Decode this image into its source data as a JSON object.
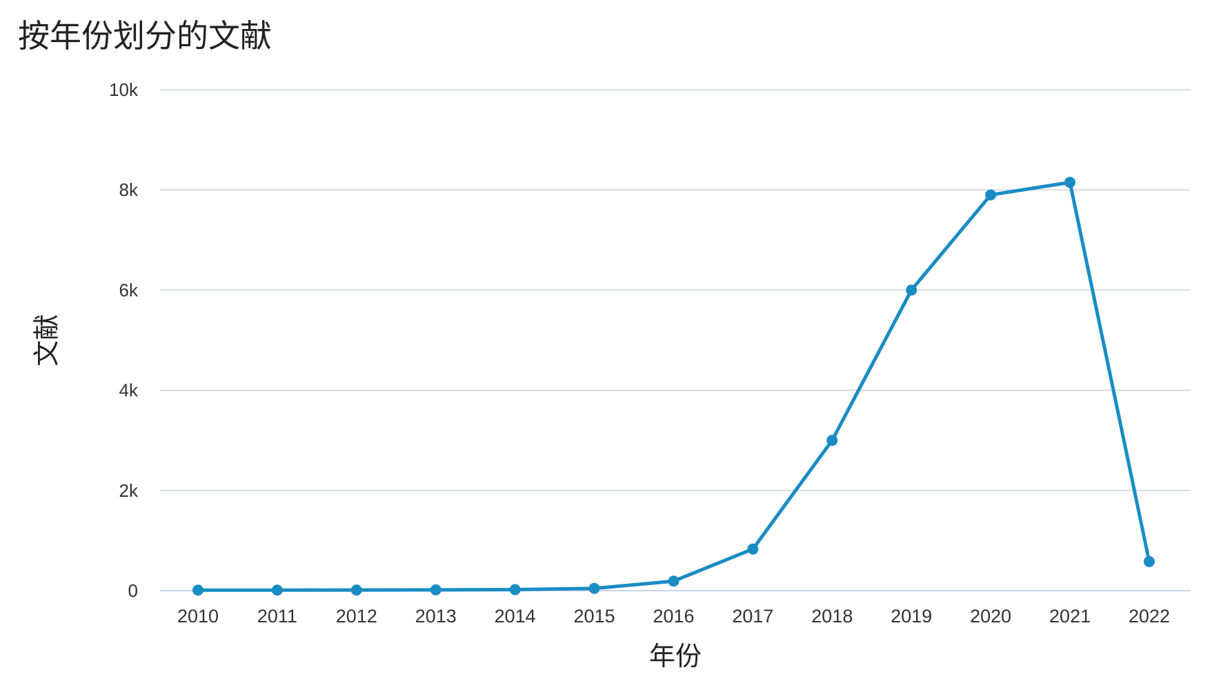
{
  "chart_data": {
    "type": "line",
    "title": "按年份划分的文献",
    "xlabel": "年份",
    "ylabel": "文献",
    "categories": [
      "2010",
      "2011",
      "2012",
      "2013",
      "2014",
      "2015",
      "2016",
      "2017",
      "2018",
      "2019",
      "2020",
      "2021",
      "2022"
    ],
    "series": [
      {
        "values": [
          10,
          10,
          12,
          15,
          20,
          45,
          190,
          830,
          3000,
          6000,
          7900,
          8150,
          580
        ],
        "color": "#1a8cc4"
      }
    ],
    "ylim": [
      0,
      10000
    ],
    "yticks": [
      0,
      2000,
      4000,
      6000,
      8000,
      10000
    ],
    "ytick_labels": [
      "0",
      "2k",
      "4k",
      "6k",
      "8k",
      "10k"
    ],
    "grid": true,
    "legend": "none",
    "marker": "circle"
  }
}
